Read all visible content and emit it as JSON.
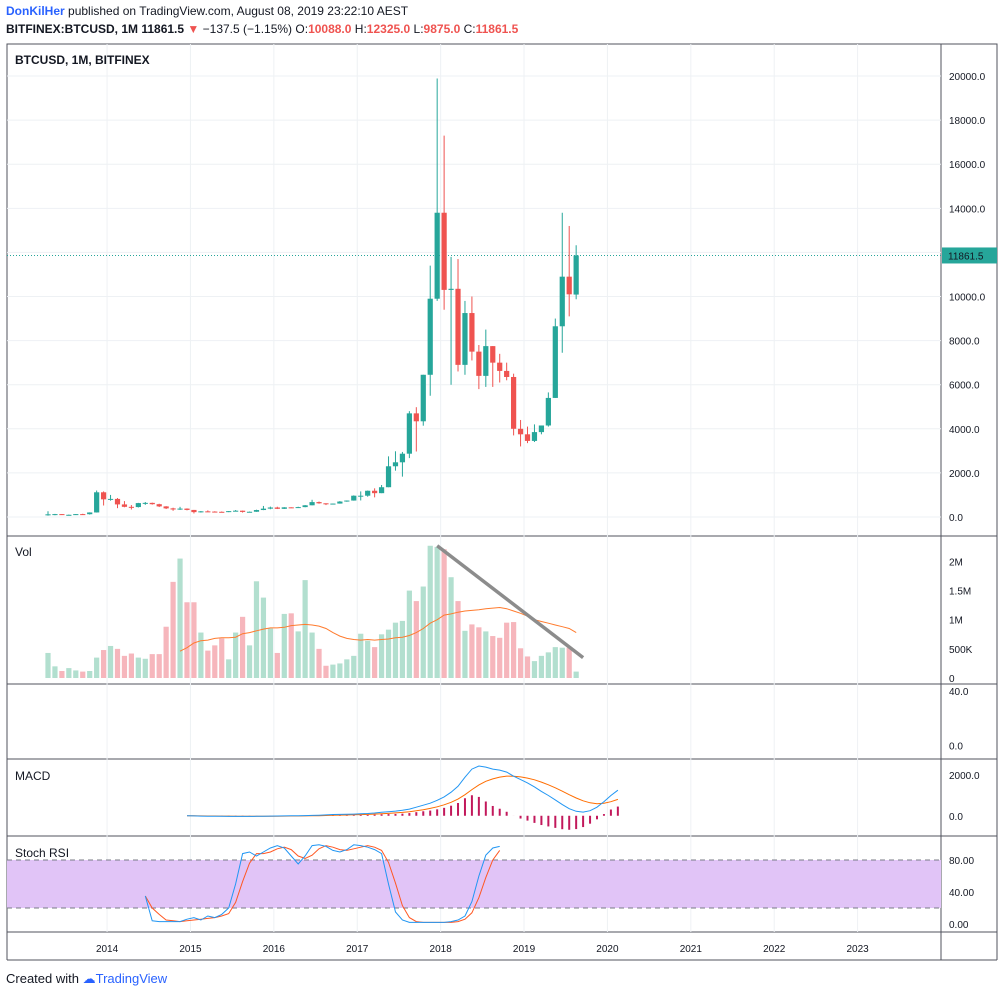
{
  "header": {
    "author": "DonKilHer",
    "published_text": "published on TradingView.com, August 08, 2019 23:22:10 AEST",
    "symbol": "BITFINEX:BTCUSD, 1M",
    "last": "11861.5",
    "change": "−137.5 (−1.15%)",
    "open_label": "O:",
    "open": "10088.0",
    "high_label": "H:",
    "high": "12325.0",
    "low_label": "L:",
    "low": "9875.0",
    "close_label": "C:",
    "close": "11861.5"
  },
  "footer": {
    "created_with": "Created with",
    "brand": "TradingView"
  },
  "colors": {
    "up": "#26a69a",
    "down": "#ef5350",
    "up_vol": "#b2dfcf",
    "down_vol": "#f6b6bc",
    "ma": "#ff7b2e",
    "macd": "#2196f3",
    "signal": "#ff6d00",
    "hist": "#c2185b",
    "stoch_k": "#2196f3",
    "stoch_d": "#ff5722",
    "rsi_band": "#e1c4f7",
    "price_line": "#26a69a"
  },
  "chart_data": [
    {
      "type": "candlestick",
      "pane": "price",
      "title": "BTCUSD, 1M, BITFINEX",
      "ylim": [
        -500,
        21000
      ],
      "y_ticks": [
        0,
        2000,
        4000,
        6000,
        8000,
        10000,
        12000,
        14000,
        16000,
        18000,
        20000
      ],
      "y_tick_labels": [
        "0.0",
        "2000.0",
        "4000.0",
        "6000.0",
        "8000.0",
        "10000.0",
        "12000.0",
        "14000.0",
        "16000.0",
        "18000.0",
        "20000.0"
      ],
      "last_price_label": "11861.5",
      "last_price": 11861.5,
      "x_ticks": [
        2014,
        2015,
        2016,
        2017,
        2018,
        2019,
        2020,
        2021,
        2022,
        2023
      ],
      "x_tick_labels": [
        "2014",
        "2015",
        "2016",
        "2017",
        "2018",
        "2019",
        "2020",
        "2021",
        "2022",
        "2023"
      ],
      "x_range": [
        2012.8,
        2024.0
      ],
      "candles": [
        {
          "t": "2013-04",
          "o": 90,
          "h": 260,
          "l": 60,
          "c": 120
        },
        {
          "t": "2013-05",
          "o": 120,
          "h": 140,
          "l": 80,
          "c": 130
        },
        {
          "t": "2013-06",
          "o": 130,
          "h": 130,
          "l": 90,
          "c": 100
        },
        {
          "t": "2013-07",
          "o": 100,
          "h": 110,
          "l": 65,
          "c": 100
        },
        {
          "t": "2013-08",
          "o": 100,
          "h": 130,
          "l": 100,
          "c": 130
        },
        {
          "t": "2013-09",
          "o": 130,
          "h": 145,
          "l": 110,
          "c": 125
        },
        {
          "t": "2013-10",
          "o": 125,
          "h": 210,
          "l": 110,
          "c": 205
        },
        {
          "t": "2013-11",
          "o": 205,
          "h": 1200,
          "l": 200,
          "c": 1120
        },
        {
          "t": "2013-12",
          "o": 1120,
          "h": 1160,
          "l": 520,
          "c": 800
        },
        {
          "t": "2014-01",
          "o": 800,
          "h": 1000,
          "l": 740,
          "c": 820
        },
        {
          "t": "2014-02",
          "o": 820,
          "h": 860,
          "l": 400,
          "c": 570
        },
        {
          "t": "2014-03",
          "o": 570,
          "h": 720,
          "l": 440,
          "c": 460
        },
        {
          "t": "2014-04",
          "o": 460,
          "h": 540,
          "l": 340,
          "c": 450
        },
        {
          "t": "2014-05",
          "o": 450,
          "h": 640,
          "l": 430,
          "c": 630
        },
        {
          "t": "2014-06",
          "o": 630,
          "h": 680,
          "l": 550,
          "c": 640
        },
        {
          "t": "2014-07",
          "o": 640,
          "h": 650,
          "l": 560,
          "c": 580
        },
        {
          "t": "2014-08",
          "o": 580,
          "h": 600,
          "l": 450,
          "c": 480
        },
        {
          "t": "2014-09",
          "o": 480,
          "h": 490,
          "l": 360,
          "c": 390
        },
        {
          "t": "2014-10",
          "o": 390,
          "h": 420,
          "l": 280,
          "c": 340
        },
        {
          "t": "2014-11",
          "o": 340,
          "h": 460,
          "l": 320,
          "c": 380
        },
        {
          "t": "2014-12",
          "o": 380,
          "h": 390,
          "l": 300,
          "c": 320
        },
        {
          "t": "2015-01",
          "o": 320,
          "h": 320,
          "l": 160,
          "c": 220
        },
        {
          "t": "2015-02",
          "o": 220,
          "h": 270,
          "l": 200,
          "c": 255
        },
        {
          "t": "2015-03",
          "o": 255,
          "h": 300,
          "l": 240,
          "c": 245
        },
        {
          "t": "2015-04",
          "o": 245,
          "h": 260,
          "l": 215,
          "c": 235
        },
        {
          "t": "2015-05",
          "o": 235,
          "h": 250,
          "l": 220,
          "c": 230
        },
        {
          "t": "2015-06",
          "o": 230,
          "h": 270,
          "l": 220,
          "c": 265
        },
        {
          "t": "2015-07",
          "o": 265,
          "h": 315,
          "l": 255,
          "c": 285
        },
        {
          "t": "2015-08",
          "o": 285,
          "h": 290,
          "l": 200,
          "c": 230
        },
        {
          "t": "2015-09",
          "o": 230,
          "h": 245,
          "l": 225,
          "c": 237
        },
        {
          "t": "2015-10",
          "o": 237,
          "h": 330,
          "l": 235,
          "c": 315
        },
        {
          "t": "2015-11",
          "o": 315,
          "h": 500,
          "l": 310,
          "c": 378
        },
        {
          "t": "2015-12",
          "o": 378,
          "h": 470,
          "l": 350,
          "c": 430
        },
        {
          "t": "2016-01",
          "o": 430,
          "h": 465,
          "l": 360,
          "c": 370
        },
        {
          "t": "2016-02",
          "o": 370,
          "h": 445,
          "l": 365,
          "c": 437
        },
        {
          "t": "2016-03",
          "o": 437,
          "h": 440,
          "l": 405,
          "c": 416
        },
        {
          "t": "2016-04",
          "o": 416,
          "h": 465,
          "l": 415,
          "c": 448
        },
        {
          "t": "2016-05",
          "o": 448,
          "h": 540,
          "l": 440,
          "c": 530
        },
        {
          "t": "2016-06",
          "o": 530,
          "h": 780,
          "l": 530,
          "c": 675
        },
        {
          "t": "2016-07",
          "o": 675,
          "h": 700,
          "l": 600,
          "c": 620
        },
        {
          "t": "2016-08",
          "o": 620,
          "h": 620,
          "l": 540,
          "c": 575
        },
        {
          "t": "2016-09",
          "o": 575,
          "h": 610,
          "l": 590,
          "c": 608
        },
        {
          "t": "2016-10",
          "o": 608,
          "h": 720,
          "l": 605,
          "c": 700
        },
        {
          "t": "2016-11",
          "o": 700,
          "h": 750,
          "l": 690,
          "c": 745
        },
        {
          "t": "2016-12",
          "o": 745,
          "h": 980,
          "l": 740,
          "c": 965
        },
        {
          "t": "2017-01",
          "o": 965,
          "h": 1160,
          "l": 750,
          "c": 965
        },
        {
          "t": "2017-02",
          "o": 965,
          "h": 1200,
          "l": 920,
          "c": 1190
        },
        {
          "t": "2017-03",
          "o": 1190,
          "h": 1300,
          "l": 890,
          "c": 1080
        },
        {
          "t": "2017-04",
          "o": 1080,
          "h": 1450,
          "l": 1080,
          "c": 1350
        },
        {
          "t": "2017-05",
          "o": 1350,
          "h": 2750,
          "l": 1350,
          "c": 2300
        },
        {
          "t": "2017-06",
          "o": 2300,
          "h": 2980,
          "l": 2100,
          "c": 2480
        },
        {
          "t": "2017-07",
          "o": 2480,
          "h": 2950,
          "l": 1830,
          "c": 2870
        },
        {
          "t": "2017-08",
          "o": 2870,
          "h": 4800,
          "l": 2670,
          "c": 4700
        },
        {
          "t": "2017-09",
          "o": 4700,
          "h": 4980,
          "l": 2970,
          "c": 4340
        },
        {
          "t": "2017-10",
          "o": 4340,
          "h": 6450,
          "l": 4140,
          "c": 6450
        },
        {
          "t": "2017-11",
          "o": 6450,
          "h": 11400,
          "l": 5500,
          "c": 9900
        },
        {
          "t": "2017-12",
          "o": 9900,
          "h": 19890,
          "l": 9800,
          "c": 13800
        },
        {
          "t": "2018-01",
          "o": 13800,
          "h": 17300,
          "l": 9400,
          "c": 10300
        },
        {
          "t": "2018-02",
          "o": 10300,
          "h": 11800,
          "l": 6000,
          "c": 10350
        },
        {
          "t": "2018-03",
          "o": 10350,
          "h": 11700,
          "l": 6600,
          "c": 6900
        },
        {
          "t": "2018-04",
          "o": 6900,
          "h": 9800,
          "l": 6450,
          "c": 9250
        },
        {
          "t": "2018-05",
          "o": 9250,
          "h": 10000,
          "l": 7100,
          "c": 7500
        },
        {
          "t": "2018-06",
          "o": 7500,
          "h": 7800,
          "l": 5800,
          "c": 6400
        },
        {
          "t": "2018-07",
          "o": 6400,
          "h": 8500,
          "l": 5900,
          "c": 7750
        },
        {
          "t": "2018-08",
          "o": 7750,
          "h": 7750,
          "l": 5900,
          "c": 7000
        },
        {
          "t": "2018-09",
          "o": 7000,
          "h": 7400,
          "l": 6100,
          "c": 6625
        },
        {
          "t": "2018-10",
          "o": 6625,
          "h": 7000,
          "l": 6200,
          "c": 6350
        },
        {
          "t": "2018-11",
          "o": 6350,
          "h": 6500,
          "l": 3700,
          "c": 4000
        },
        {
          "t": "2018-12",
          "o": 4000,
          "h": 4400,
          "l": 3200,
          "c": 3750
        },
        {
          "t": "2019-01",
          "o": 3750,
          "h": 4100,
          "l": 3350,
          "c": 3450
        },
        {
          "t": "2019-02",
          "o": 3450,
          "h": 4200,
          "l": 3400,
          "c": 3850
        },
        {
          "t": "2019-03",
          "o": 3850,
          "h": 4150,
          "l": 3750,
          "c": 4150
        },
        {
          "t": "2019-04",
          "o": 4150,
          "h": 5650,
          "l": 4100,
          "c": 5400
        },
        {
          "t": "2019-05",
          "o": 5400,
          "h": 9000,
          "l": 5400,
          "c": 8650
        },
        {
          "t": "2019-06",
          "o": 8650,
          "h": 13800,
          "l": 7450,
          "c": 10900
        },
        {
          "t": "2019-07",
          "o": 10900,
          "h": 13200,
          "l": 9100,
          "c": 10100
        },
        {
          "t": "2019-08",
          "o": 10088,
          "h": 12325,
          "l": 9875,
          "c": 11861.5
        }
      ]
    },
    {
      "type": "bar",
      "pane": "volume",
      "title": "Vol",
      "ylim": [
        0,
        2300000
      ],
      "y_ticks": [
        0,
        500000,
        1000000,
        1500000,
        2000000
      ],
      "y_tick_labels": [
        "0",
        "500K",
        "1M",
        "1.5M",
        "2M"
      ],
      "values": [
        430000,
        200000,
        120000,
        170000,
        130000,
        110000,
        120000,
        350000,
        480000,
        550000,
        500000,
        380000,
        420000,
        350000,
        330000,
        410000,
        410000,
        880000,
        1650000,
        2050000,
        1300000,
        1300000,
        780000,
        470000,
        560000,
        680000,
        320000,
        780000,
        1050000,
        560000,
        1660000,
        1380000,
        850000,
        430000,
        1100000,
        1110000,
        800000,
        1680000,
        780000,
        500000,
        210000,
        230000,
        250000,
        320000,
        380000,
        760000,
        640000,
        530000,
        750000,
        830000,
        950000,
        980000,
        1500000,
        1320000,
        1570000,
        2270000,
        2250000,
        2210000,
        1730000,
        1320000,
        810000,
        920000,
        870000,
        800000,
        720000,
        690000,
        950000,
        960000,
        510000,
        370000,
        290000,
        380000,
        440000,
        530000,
        520000,
        520000,
        110000
      ],
      "ma": [
        null,
        null,
        null,
        null,
        null,
        null,
        null,
        null,
        null,
        null,
        null,
        null,
        null,
        null,
        null,
        null,
        null,
        null,
        null,
        460000,
        520000,
        600000,
        640000,
        650000,
        680000,
        690000,
        690000,
        700000,
        760000,
        780000,
        810000,
        840000,
        860000,
        860000,
        870000,
        900000,
        910000,
        920000,
        910000,
        890000,
        850000,
        780000,
        720000,
        680000,
        660000,
        650000,
        660000,
        650000,
        660000,
        670000,
        690000,
        700000,
        730000,
        780000,
        850000,
        940000,
        1000000,
        1080000,
        1100000,
        1130000,
        1150000,
        1160000,
        1170000,
        1190000,
        1200000,
        1210000,
        1190000,
        1150000,
        1110000,
        1060000,
        1000000,
        970000,
        940000,
        910000,
        880000,
        850000,
        780000
      ]
    },
    {
      "type": "line",
      "pane": "macd",
      "title": "MACD",
      "ylim": [
        -800,
        2600
      ],
      "y_ticks": [
        0,
        2000
      ],
      "y_tick_labels": [
        "0.0",
        "2000.0"
      ],
      "start_index": 20,
      "macd": [
        -2,
        -8,
        -15,
        -20,
        -25,
        -27,
        -30,
        -30,
        -30,
        -29,
        -26,
        -22,
        -15,
        -10,
        -5,
        0,
        3,
        10,
        20,
        30,
        45,
        60,
        65,
        70,
        80,
        95,
        110,
        135,
        170,
        200,
        230,
        270,
        330,
        420,
        520,
        620,
        760,
        930,
        1160,
        1450,
        1900,
        2300,
        2450,
        2400,
        2300,
        2250,
        2150,
        1950,
        1780,
        1620,
        1420,
        1200,
        1000,
        780,
        550,
        350,
        220,
        180,
        250,
        420,
        700,
        1000,
        1260
      ],
      "signal": [
        -2,
        -4,
        -7,
        -10,
        -13,
        -16,
        -18,
        -20,
        -21,
        -22,
        -23,
        -22,
        -21,
        -19,
        -16,
        -13,
        -10,
        -6,
        -1,
        5,
        13,
        22,
        31,
        39,
        47,
        57,
        67,
        81,
        98,
        118,
        140,
        166,
        198,
        243,
        298,
        363,
        443,
        540,
        664,
        821,
        1037,
        1289,
        1521,
        1697,
        1817,
        1904,
        1953,
        1952,
        1917,
        1858,
        1771,
        1657,
        1526,
        1377,
        1212,
        1040,
        876,
        737,
        640,
        596,
        617,
        693,
        807
      ],
      "hist": [
        0,
        -4,
        -8,
        -10,
        -12,
        -11,
        -12,
        -10,
        -9,
        -7,
        -3,
        0,
        6,
        9,
        11,
        13,
        13,
        16,
        21,
        25,
        32,
        38,
        34,
        31,
        33,
        38,
        43,
        54,
        72,
        82,
        90,
        104,
        132,
        177,
        222,
        257,
        317,
        390,
        496,
        629,
        863,
        1011,
        929,
        703,
        483,
        346,
        197,
        -2,
        -137,
        -238,
        -351,
        -457,
        -526,
        -597,
        -662,
        -690,
        -656,
        -557,
        -390,
        -176,
        83,
        307,
        453
      ]
    },
    {
      "type": "line",
      "pane": "stoch_rsi",
      "title": "Stoch RSI",
      "ylim": [
        -5,
        105
      ],
      "y_ticks": [
        0,
        40,
        80
      ],
      "y_tick_labels": [
        "0.00",
        "40.00",
        "80.00"
      ],
      "band": [
        20,
        80
      ],
      "start_index": 14,
      "k": [
        35,
        4,
        3,
        3,
        3,
        3,
        6,
        8,
        5,
        10,
        8,
        12,
        20,
        50,
        88,
        90,
        85,
        90,
        95,
        98,
        95,
        85,
        75,
        85,
        98,
        99,
        97,
        92,
        90,
        93,
        99,
        98,
        96,
        93,
        88,
        50,
        15,
        5,
        2,
        2,
        2,
        2,
        2,
        2,
        3,
        5,
        10,
        28,
        60,
        86,
        95,
        97
      ],
      "d": [
        35,
        20,
        12,
        5,
        4,
        3,
        4,
        5,
        6,
        7,
        8,
        10,
        13,
        27,
        53,
        76,
        88,
        88,
        90,
        94,
        96,
        93,
        85,
        82,
        86,
        94,
        98,
        96,
        93,
        92,
        94,
        96,
        98,
        96,
        92,
        77,
        51,
        23,
        8,
        3,
        2,
        2,
        2,
        2,
        2,
        3,
        6,
        14,
        33,
        58,
        80,
        92
      ]
    }
  ],
  "empty_pane": {
    "y_ticks": [
      0,
      40
    ],
    "y_tick_labels": [
      "0.0",
      "40.0"
    ],
    "ylim": [
      -10,
      45
    ]
  }
}
